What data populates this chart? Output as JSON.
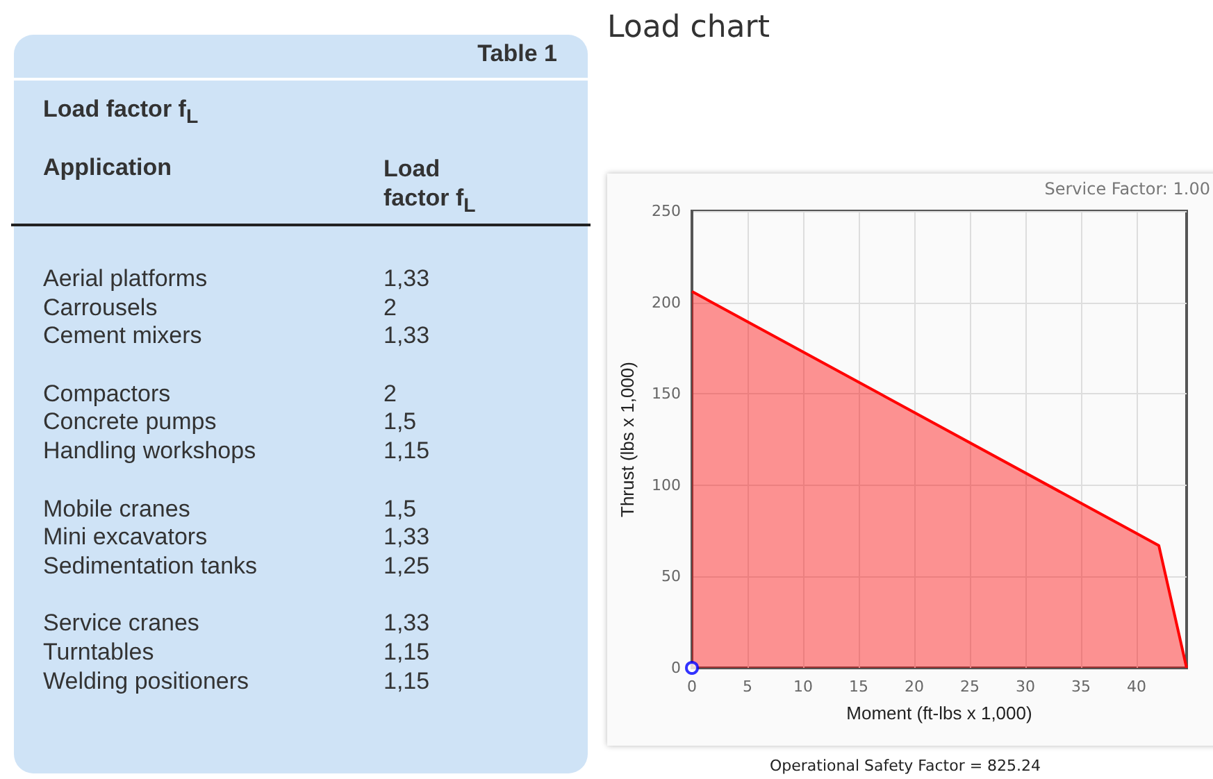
{
  "chart_data": [
    {
      "type": "other",
      "title": "Table 1",
      "subtitle": "Load factor f$_{L}$",
      "xlabel": "Application",
      "ylabel": "Load factor f$_{L}$",
      "categories": [
        "Aerial platforms",
        "Carrousels",
        "Cement mixers",
        "Compactors",
        "Concrete pumps",
        "Handling workshops",
        "Mobile cranes",
        "Mini excavators",
        "Sedimentation tanks",
        "Service cranes",
        "Turntables",
        "Welding positioners"
      ],
      "value_labels": [
        "1,33",
        "2",
        "1,33",
        "2",
        "1,5",
        "1,15",
        "1,5",
        "1,33",
        "1,25",
        "1,33",
        "1,15",
        "1,15"
      ]
    },
    {
      "type": "area",
      "title": "Load chart",
      "xlabel": "Moment (ft-lbs x 1,000)",
      "ylabel": "Thrust (lbs x 1,000)",
      "annotations": [
        "Service Factor: 1.00",
        "Operational Safety Factor = 825.24"
      ],
      "series": [
        {
          "type": "area",
          "color": "#ff0000",
          "x": [
            0,
            42,
            44.5
          ],
          "values": [
            206,
            67,
            0
          ],
          "marker": "none"
        },
        {
          "type": "scatter",
          "color": "#0000ff",
          "x": [
            0
          ],
          "values": [
            0
          ],
          "marker": "circle"
        }
      ],
      "xlim": [
        0,
        44.5
      ],
      "xticks": [
        0,
        5,
        10,
        15,
        20,
        25,
        30,
        35,
        40
      ],
      "ylim": [
        0,
        250
      ],
      "yticks": [
        0,
        50,
        100,
        150,
        200,
        250
      ],
      "grid": true
    }
  ]
}
